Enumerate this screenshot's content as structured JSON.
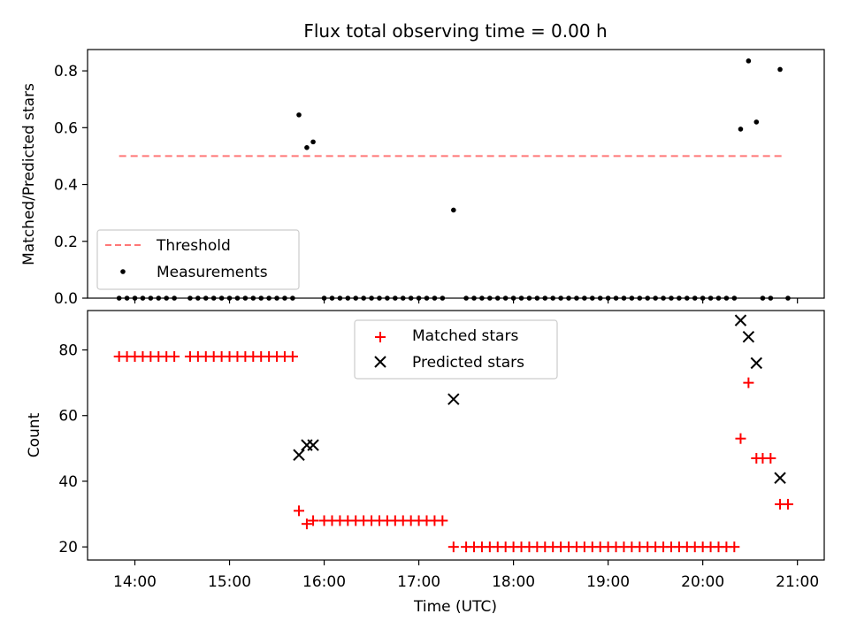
{
  "chart_data": [
    {
      "type": "scatter",
      "title": "Flux total observing time = 0.00 h",
      "ylabel": "Matched/Predicted stars",
      "xlabel": "",
      "ylim": [
        0,
        0.875
      ],
      "y_ticks": [
        "0.0",
        "0.2",
        "0.4",
        "0.6",
        "0.8"
      ],
      "grid": false,
      "legend_position": "lower-left",
      "series": [
        {
          "name": "Threshold",
          "style": "dashed-line",
          "color": "#ff7777",
          "x": [
            "13:50",
            "20:50"
          ],
          "y": [
            0.5,
            0.5
          ]
        },
        {
          "name": "Measurements",
          "style": "dot",
          "color": "#000000",
          "x": [
            "13:50",
            "13:55",
            "14:00",
            "14:05",
            "14:10",
            "14:15",
            "14:20",
            "14:25",
            "14:35",
            "14:40",
            "14:45",
            "14:50",
            "14:55",
            "15:00",
            "15:05",
            "15:10",
            "15:15",
            "15:20",
            "15:25",
            "15:30",
            "15:35",
            "15:40",
            "15:44",
            "15:49",
            "15:53",
            "16:00",
            "16:05",
            "16:10",
            "16:15",
            "16:20",
            "16:25",
            "16:30",
            "16:35",
            "16:40",
            "16:45",
            "16:50",
            "16:55",
            "17:00",
            "17:05",
            "17:10",
            "17:15",
            "17:22",
            "17:30",
            "17:35",
            "17:40",
            "17:45",
            "17:50",
            "17:55",
            "18:00",
            "18:05",
            "18:10",
            "18:15",
            "18:20",
            "18:25",
            "18:30",
            "18:35",
            "18:40",
            "18:45",
            "18:50",
            "18:55",
            "19:00",
            "19:05",
            "19:10",
            "19:15",
            "19:20",
            "19:25",
            "19:30",
            "19:35",
            "19:40",
            "19:45",
            "19:50",
            "19:55",
            "20:00",
            "20:05",
            "20:10",
            "20:15",
            "20:20",
            "20:24",
            "20:29",
            "20:34",
            "20:38",
            "20:43",
            "20:49",
            "20:54"
          ],
          "y": [
            0,
            0,
            0,
            0,
            0,
            0,
            0,
            0,
            0,
            0,
            0,
            0,
            0,
            0,
            0,
            0,
            0,
            0,
            0,
            0,
            0,
            0,
            0.645,
            0.53,
            0.55,
            0,
            0,
            0,
            0,
            0,
            0,
            0,
            0,
            0,
            0,
            0,
            0,
            0,
            0,
            0,
            0,
            0.31,
            0,
            0,
            0,
            0,
            0,
            0,
            0,
            0,
            0,
            0,
            0,
            0,
            0,
            0,
            0,
            0,
            0,
            0,
            0,
            0,
            0,
            0,
            0,
            0,
            0,
            0,
            0,
            0,
            0,
            0,
            0,
            0,
            0,
            0,
            0,
            0.595,
            0.835,
            0.62,
            0,
            0,
            0.805,
            0
          ]
        }
      ]
    },
    {
      "type": "scatter",
      "xlabel": "Time (UTC)",
      "ylabel": "Count",
      "ylim": [
        16,
        92
      ],
      "y_ticks": [
        "20",
        "40",
        "60",
        "80"
      ],
      "x_ticks": [
        "14:00",
        "15:00",
        "16:00",
        "17:00",
        "18:00",
        "19:00",
        "20:00",
        "21:00"
      ],
      "xlim": [
        "13:30",
        "21:17"
      ],
      "grid": false,
      "legend_position": "top-center",
      "series": [
        {
          "name": "Matched stars",
          "marker": "plus",
          "color": "#ff0000",
          "x": [
            "13:50",
            "13:55",
            "14:00",
            "14:05",
            "14:10",
            "14:15",
            "14:20",
            "14:25",
            "14:35",
            "14:40",
            "14:45",
            "14:50",
            "14:55",
            "15:00",
            "15:05",
            "15:10",
            "15:15",
            "15:20",
            "15:25",
            "15:30",
            "15:35",
            "15:40",
            "15:44",
            "15:49",
            "15:53",
            "16:00",
            "16:05",
            "16:10",
            "16:15",
            "16:20",
            "16:25",
            "16:30",
            "16:35",
            "16:40",
            "16:45",
            "16:50",
            "16:55",
            "17:00",
            "17:05",
            "17:10",
            "17:15",
            "17:22",
            "17:30",
            "17:35",
            "17:40",
            "17:45",
            "17:50",
            "17:55",
            "18:00",
            "18:05",
            "18:10",
            "18:15",
            "18:20",
            "18:25",
            "18:30",
            "18:35",
            "18:40",
            "18:45",
            "18:50",
            "18:55",
            "19:00",
            "19:05",
            "19:10",
            "19:15",
            "19:20",
            "19:25",
            "19:30",
            "19:35",
            "19:40",
            "19:45",
            "19:50",
            "19:55",
            "20:00",
            "20:05",
            "20:10",
            "20:15",
            "20:20",
            "20:24",
            "20:29",
            "20:34",
            "20:38",
            "20:43",
            "20:49",
            "20:54"
          ],
          "y": [
            78,
            78,
            78,
            78,
            78,
            78,
            78,
            78,
            78,
            78,
            78,
            78,
            78,
            78,
            78,
            78,
            78,
            78,
            78,
            78,
            78,
            78,
            31,
            27,
            28,
            28,
            28,
            28,
            28,
            28,
            28,
            28,
            28,
            28,
            28,
            28,
            28,
            28,
            28,
            28,
            28,
            20,
            20,
            20,
            20,
            20,
            20,
            20,
            20,
            20,
            20,
            20,
            20,
            20,
            20,
            20,
            20,
            20,
            20,
            20,
            20,
            20,
            20,
            20,
            20,
            20,
            20,
            20,
            20,
            20,
            20,
            20,
            20,
            20,
            20,
            20,
            20,
            53,
            70,
            47,
            47,
            47,
            33,
            33
          ]
        },
        {
          "name": "Predicted stars",
          "marker": "x",
          "color": "#000000",
          "x": [
            "15:44",
            "15:49",
            "15:53",
            "17:22",
            "20:24",
            "20:29",
            "20:34",
            "20:49"
          ],
          "y": [
            48,
            51,
            51,
            65,
            89,
            84,
            76,
            41
          ]
        }
      ]
    }
  ]
}
